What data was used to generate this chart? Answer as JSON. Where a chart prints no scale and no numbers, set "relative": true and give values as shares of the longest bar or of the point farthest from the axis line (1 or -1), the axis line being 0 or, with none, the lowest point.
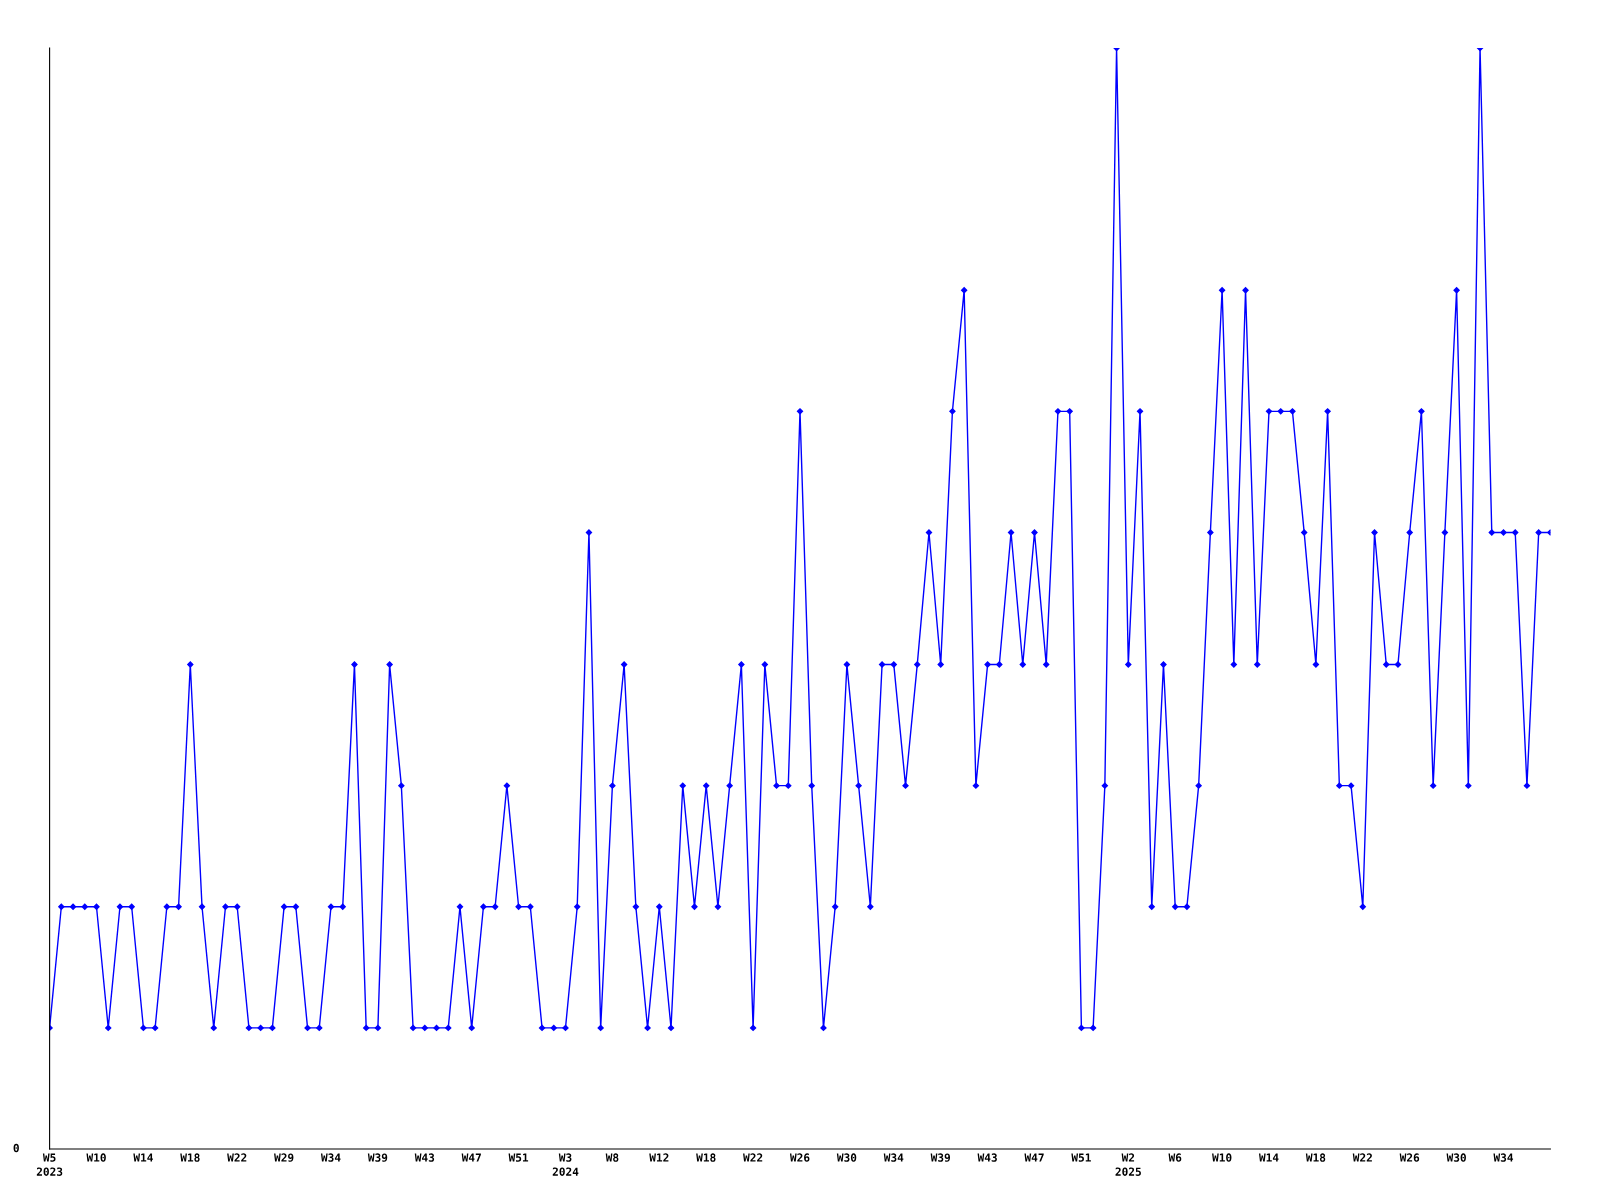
{
  "chart_data": {
    "type": "line",
    "relative": true,
    "marker": "diamond",
    "line_style": "solid",
    "grid": false,
    "legend": false,
    "categories": [
      "W5\n2023",
      null,
      null,
      null,
      "W10",
      null,
      null,
      null,
      "W14",
      null,
      null,
      null,
      "W18",
      null,
      null,
      null,
      "W22",
      null,
      null,
      null,
      "W29",
      null,
      null,
      null,
      "W34",
      null,
      null,
      null,
      "W39",
      null,
      null,
      null,
      "W43",
      null,
      null,
      null,
      "W47",
      null,
      null,
      null,
      "W51",
      null,
      null,
      null,
      "W3\n2024",
      null,
      null,
      null,
      "W8",
      null,
      null,
      null,
      "W12",
      null,
      null,
      null,
      "W18",
      null,
      null,
      null,
      "W22",
      null,
      null,
      null,
      "W26",
      null,
      null,
      null,
      "W30",
      null,
      null,
      null,
      "W34",
      null,
      null,
      null,
      "W39",
      null,
      null,
      null,
      "W43",
      null,
      null,
      null,
      "W47",
      null,
      null,
      null,
      "W51",
      null,
      null,
      null,
      "W2\n2025",
      null,
      null,
      null,
      "W6",
      null,
      null,
      null,
      "W10",
      null,
      null,
      null,
      "W14",
      null,
      null,
      null,
      "W18",
      null,
      null,
      null,
      "W22",
      null,
      null,
      null,
      "W26",
      null,
      null,
      null,
      "W30",
      null,
      null,
      null,
      "W34",
      null,
      null,
      null,
      null
    ],
    "series": [
      {
        "color": "#0000ff",
        "values": [
          0.11,
          0.22,
          0.22,
          0.22,
          0.22,
          0.11,
          0.22,
          0.22,
          0.11,
          0.11,
          0.22,
          0.22,
          0.44,
          0.22,
          0.11,
          0.22,
          0.22,
          0.11,
          0.11,
          0.11,
          0.22,
          0.22,
          0.11,
          0.11,
          0.22,
          0.22,
          0.44,
          0.11,
          0.11,
          0.44,
          0.33,
          0.11,
          0.11,
          0.11,
          0.11,
          0.22,
          0.11,
          0.22,
          0.22,
          0.33,
          0.22,
          0.22,
          0.11,
          0.11,
          0.11,
          0.22,
          0.56,
          0.11,
          0.33,
          0.44,
          0.22,
          0.11,
          0.22,
          0.11,
          0.33,
          0.22,
          0.33,
          0.22,
          0.33,
          0.44,
          0.11,
          0.44,
          0.33,
          0.33,
          0.67,
          0.33,
          0.11,
          0.22,
          0.44,
          0.33,
          0.22,
          0.44,
          0.44,
          0.33,
          0.44,
          0.56,
          0.44,
          0.67,
          0.78,
          0.33,
          0.44,
          0.44,
          0.56,
          0.44,
          0.56,
          0.44,
          0.67,
          0.67,
          0.11,
          0.11,
          0.33,
          1,
          0.44,
          0.67,
          0.22,
          0.44,
          0.22,
          0.22,
          0.33,
          0.56,
          0.78,
          0.44,
          0.78,
          0.44,
          0.67,
          0.67,
          0.67,
          0.56,
          0.44,
          0.67,
          0.33,
          0.33,
          0.22,
          0.56,
          0.44,
          0.44,
          0.56,
          0.67,
          0.33,
          0.56,
          0.78,
          0.33,
          1,
          0.56,
          0.56,
          0.56,
          0.33,
          0.56,
          0.56
        ]
      }
    ],
    "annotations": [
      "0"
    ]
  }
}
